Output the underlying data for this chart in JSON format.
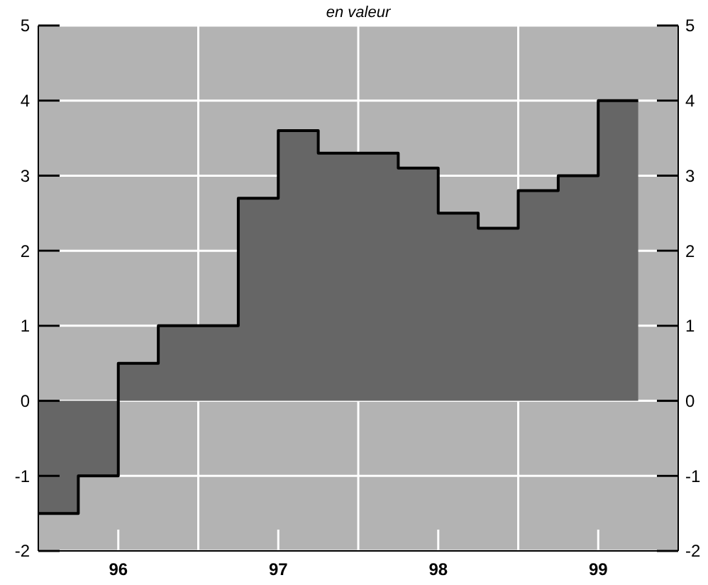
{
  "chart_data": {
    "type": "area",
    "title": "en valeur",
    "x": [
      95.5,
      95.75,
      96,
      96.25,
      96.5,
      96.75,
      97,
      97.25,
      97.5,
      97.75,
      98,
      98.25,
      98.5,
      98.75,
      99,
      99.25
    ],
    "series": [
      {
        "color": "#666666",
        "values": [
          -1.5,
          -1,
          0.5,
          1,
          1,
          2.7,
          3.6,
          3.3,
          3.3,
          3.1,
          2.5,
          2.3,
          2.8,
          3.0,
          4.0,
          4.0
        ]
      }
    ],
    "xlim": [
      95.5,
      99.5
    ],
    "xticks": [
      96,
      {
        "value": 96.5,
        "label": null
      },
      97,
      {
        "value": 97.5,
        "label": null
      },
      98,
      {
        "value": 98.5,
        "label": null
      },
      99
    ],
    "ylim": [
      -2,
      5
    ],
    "yticks": [
      -2,
      -1,
      0,
      1,
      2,
      3,
      4,
      5
    ],
    "y2lim": [
      -2,
      5
    ],
    "y2ticks": [
      -2,
      -1,
      0,
      1,
      2,
      3,
      4,
      5
    ],
    "grid": true,
    "line_style": "solid"
  }
}
